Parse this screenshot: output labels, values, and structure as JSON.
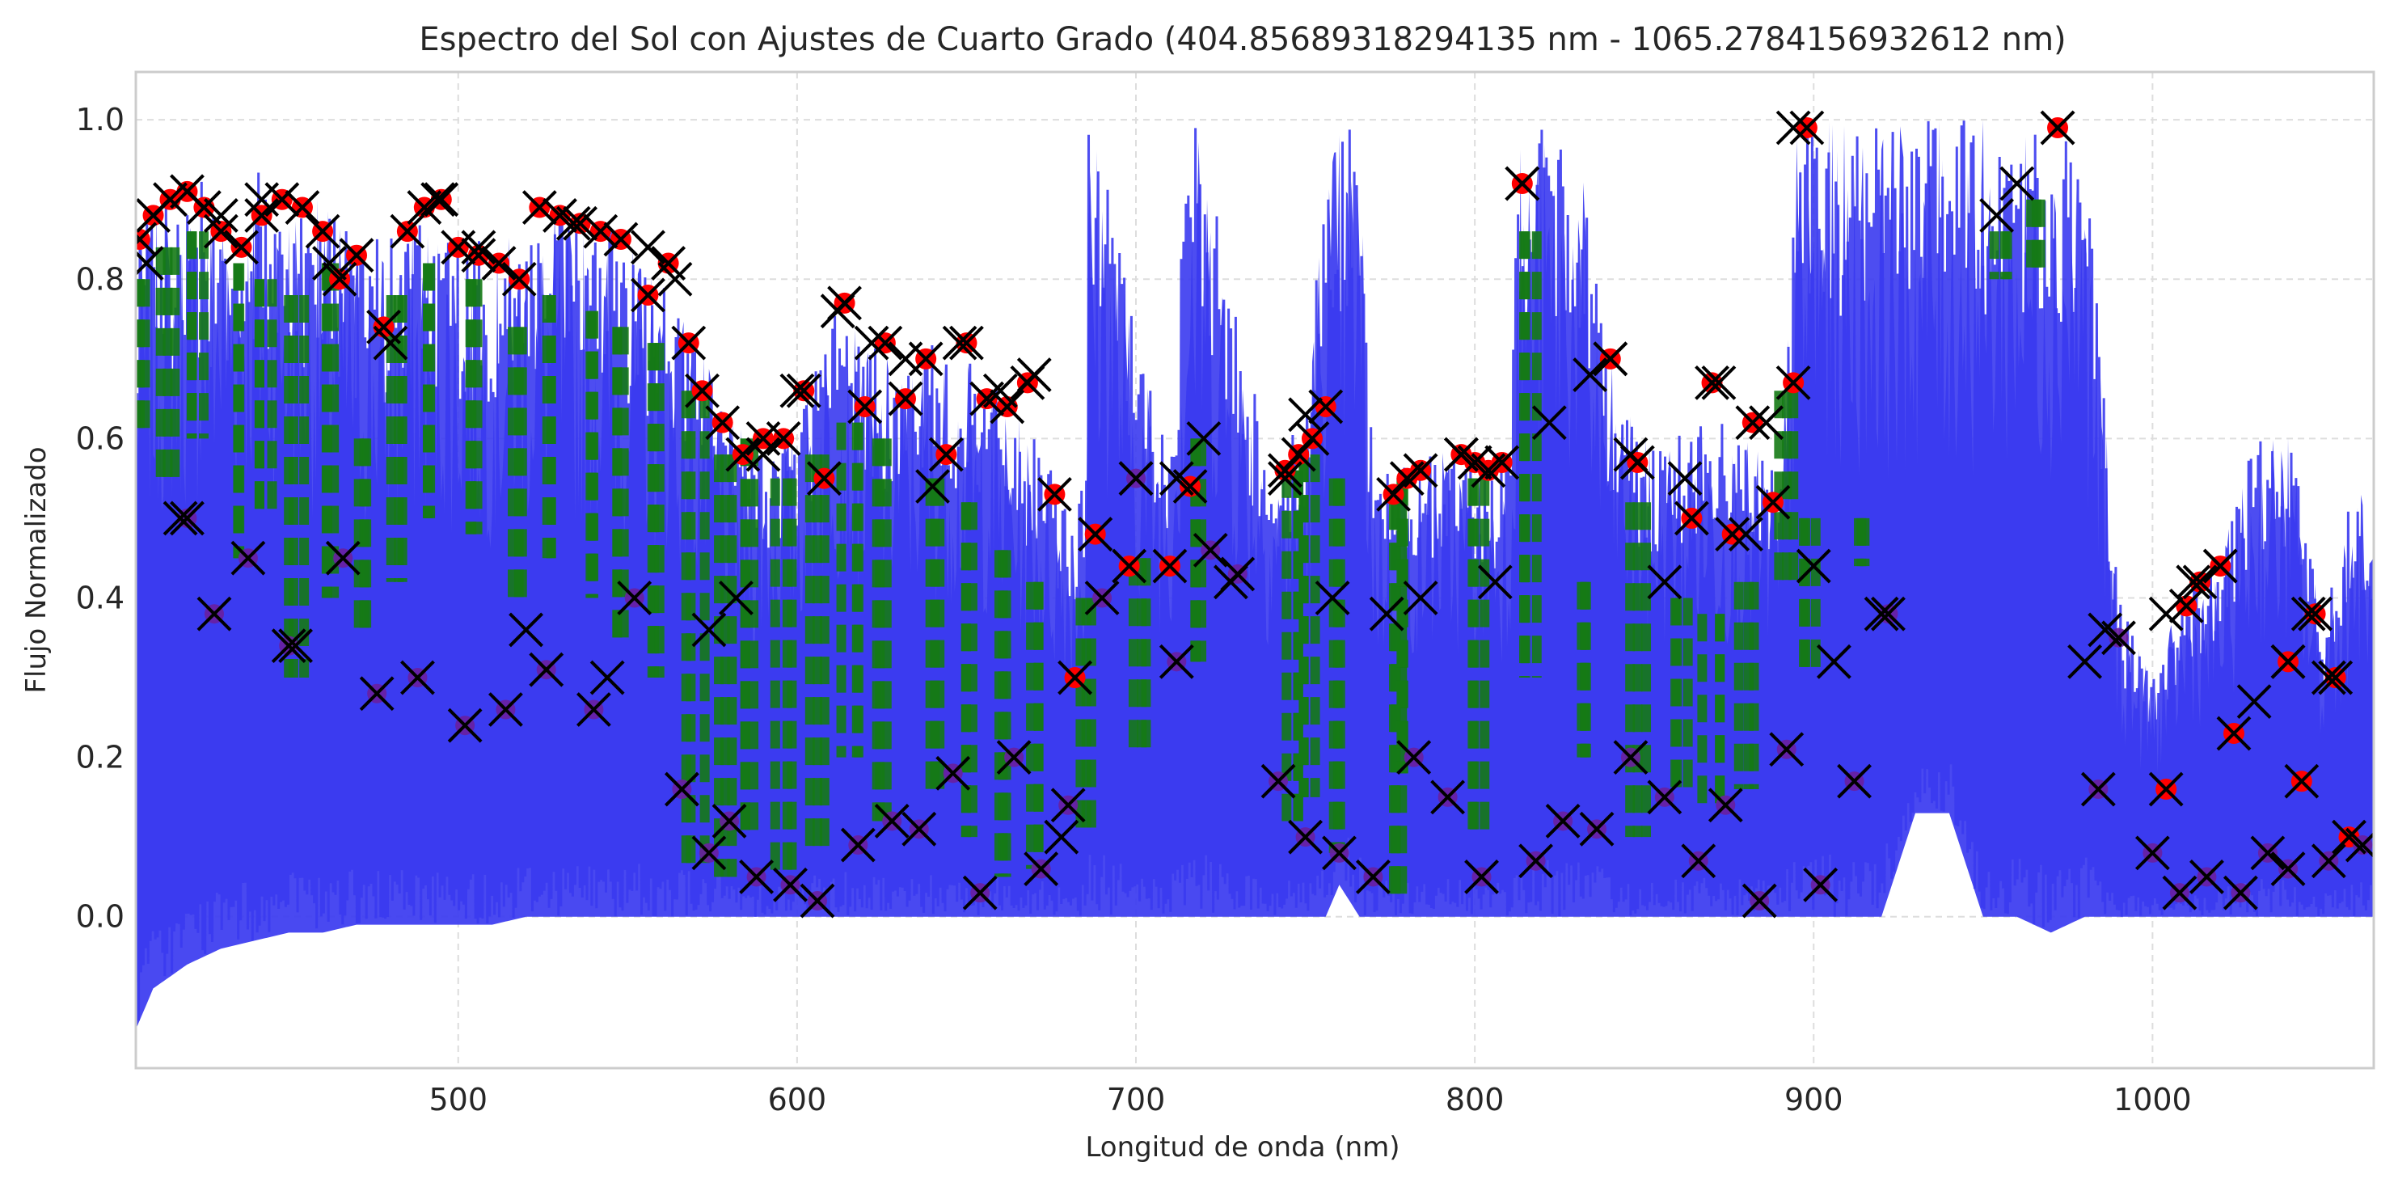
{
  "chart_data": {
    "type": "line",
    "title": "Espectro del Sol con Ajustes de Cuarto Grado (404.85689318294135 nm - 1065.2784156932612 nm)",
    "xlabel": "Longitud de onda (nm)",
    "ylabel": "Flujo Normalizado",
    "xlim": [
      404.86,
      1065.28
    ],
    "ylim": [
      -0.19,
      1.06
    ],
    "x_ticks": [
      500,
      600,
      700,
      800,
      900,
      1000
    ],
    "y_ticks": [
      0.0,
      0.2,
      0.4,
      0.6,
      0.8,
      1.0
    ],
    "x_tick_labels": [
      "500",
      "600",
      "700",
      "800",
      "900",
      "1000"
    ],
    "y_tick_labels": [
      "0.0",
      "0.2",
      "0.4",
      "0.6",
      "0.8",
      "1.0"
    ],
    "grid": true,
    "legend": "none",
    "colors": {
      "spectrum": "#3a3af0",
      "fit_points": "#ff0000",
      "continuum_markers": "#000000",
      "fit_segments": "#157a15",
      "low_points": "#6a1fa0"
    },
    "series": [
      {
        "kind": "spectrum-envelope",
        "x": [
          405,
          410,
          420,
          430,
          440,
          450,
          460,
          470,
          480,
          490,
          500,
          510,
          520,
          530,
          540,
          550,
          560,
          570,
          580,
          590,
          600,
          610,
          620,
          630,
          640,
          650,
          660,
          670,
          680,
          685,
          686,
          690,
          700,
          710,
          716,
          720,
          730,
          740,
          750,
          756,
          760,
          766,
          770,
          780,
          790,
          800,
          810,
          813,
          818,
          830,
          840,
          850,
          860,
          870,
          880,
          890,
          895,
          900,
          910,
          920,
          930,
          940,
          950,
          960,
          970,
          980,
          990,
          1000,
          1010,
          1020,
          1030,
          1040,
          1050,
          1060,
          1065
        ],
        "upper": [
          0.86,
          0.9,
          0.92,
          0.93,
          0.94,
          0.93,
          0.9,
          0.87,
          0.85,
          0.9,
          0.86,
          0.84,
          0.88,
          0.89,
          0.87,
          0.85,
          0.82,
          0.74,
          0.62,
          0.6,
          0.63,
          0.78,
          0.72,
          0.7,
          0.72,
          0.7,
          0.66,
          0.6,
          0.52,
          0.55,
          0.99,
          0.99,
          0.72,
          0.62,
          0.99,
          0.99,
          0.75,
          0.6,
          0.62,
          0.98,
          1.0,
          0.98,
          0.57,
          0.57,
          0.6,
          0.58,
          0.58,
          0.99,
          0.99,
          0.98,
          0.7,
          0.6,
          0.62,
          0.63,
          0.6,
          0.56,
          0.99,
          1.0,
          1.0,
          1.0,
          1.0,
          1.0,
          1.0,
          1.0,
          1.0,
          0.98,
          0.4,
          0.3,
          0.42,
          0.45,
          0.6,
          0.62,
          0.38,
          0.56,
          0.5
        ],
        "lower": [
          -0.14,
          -0.09,
          -0.06,
          -0.04,
          -0.03,
          -0.02,
          -0.02,
          -0.01,
          -0.01,
          -0.01,
          -0.01,
          -0.01,
          0.0,
          0.0,
          0.0,
          0.0,
          0.0,
          0.0,
          0.0,
          0.0,
          0.0,
          0.0,
          0.0,
          0.0,
          0.0,
          0.0,
          0.0,
          0.0,
          0.0,
          0.0,
          0.0,
          0.0,
          0.0,
          0.0,
          0.0,
          0.0,
          0.0,
          0.0,
          0.0,
          0.0,
          0.04,
          0.0,
          0.0,
          0.0,
          0.0,
          0.0,
          0.0,
          0.0,
          0.0,
          0.0,
          0.0,
          0.0,
          0.0,
          0.0,
          0.0,
          0.0,
          0.0,
          0.0,
          0.0,
          0.0,
          0.13,
          0.13,
          0.0,
          0.0,
          -0.02,
          0.0,
          0.0,
          0.0,
          0.0,
          0.0,
          0.0,
          0.0,
          0.0,
          0.0,
          0.0
        ]
      },
      {
        "kind": "fit-points-high",
        "x": [
          406,
          410,
          415,
          420,
          425,
          430,
          436,
          442,
          448,
          454,
          460,
          465,
          470,
          478,
          485,
          490,
          495,
          500,
          506,
          512,
          518,
          524,
          530,
          536,
          542,
          548,
          556,
          562,
          568,
          572,
          578,
          584,
          590,
          596,
          602,
          608,
          614,
          620,
          626,
          632,
          638,
          644,
          650,
          656,
          662,
          668,
          676,
          682,
          688,
          698,
          710,
          716,
          744,
          748,
          752,
          756,
          776,
          780,
          784,
          796,
          800,
          804,
          808,
          814,
          840,
          848,
          864,
          870,
          876,
          882,
          888,
          894,
          898,
          972,
          1004,
          1010,
          1014,
          1020,
          1024,
          1040,
          1044,
          1048,
          1054,
          1058
        ],
        "y": [
          0.85,
          0.88,
          0.9,
          0.91,
          0.89,
          0.86,
          0.84,
          0.88,
          0.9,
          0.89,
          0.86,
          0.8,
          0.83,
          0.74,
          0.86,
          0.89,
          0.9,
          0.84,
          0.83,
          0.82,
          0.8,
          0.89,
          0.88,
          0.87,
          0.86,
          0.85,
          0.78,
          0.82,
          0.72,
          0.66,
          0.62,
          0.58,
          0.6,
          0.6,
          0.66,
          0.55,
          0.77,
          0.64,
          0.72,
          0.65,
          0.7,
          0.58,
          0.72,
          0.65,
          0.64,
          0.67,
          0.53,
          0.3,
          0.48,
          0.44,
          0.44,
          0.54,
          0.56,
          0.58,
          0.6,
          0.64,
          0.53,
          0.55,
          0.56,
          0.58,
          0.57,
          0.56,
          0.57,
          0.92,
          0.7,
          0.57,
          0.5,
          0.67,
          0.48,
          0.62,
          0.52,
          0.67,
          0.99,
          0.99,
          0.16,
          0.39,
          0.42,
          0.44,
          0.23,
          0.32,
          0.17,
          0.38,
          0.3,
          0.1
        ]
      },
      {
        "kind": "fit-points-low",
        "x": [
          420,
          428,
          438,
          450,
          466,
          476,
          488,
          502,
          514,
          526,
          540,
          552,
          566,
          574,
          580,
          588,
          598,
          606,
          618,
          628,
          636,
          646,
          654,
          664,
          672,
          680,
          690,
          700,
          712,
          722,
          730,
          742,
          750,
          760,
          770,
          782,
          792,
          802,
          818,
          826,
          836,
          846,
          856,
          866,
          874,
          884,
          892,
          902,
          912,
          922,
          984,
          990,
          1000,
          1008,
          1016,
          1026,
          1034,
          1040,
          1052,
          1062
        ],
        "y": [
          0.5,
          0.38,
          0.45,
          0.34,
          0.45,
          0.28,
          0.3,
          0.24,
          0.26,
          0.31,
          0.26,
          0.4,
          0.16,
          0.08,
          0.12,
          0.05,
          0.04,
          0.02,
          0.09,
          0.12,
          0.11,
          0.18,
          0.03,
          0.2,
          0.06,
          0.14,
          0.4,
          0.55,
          0.32,
          0.46,
          0.43,
          0.17,
          0.1,
          0.08,
          0.05,
          0.2,
          0.15,
          0.05,
          0.07,
          0.12,
          0.11,
          0.2,
          0.15,
          0.07,
          0.14,
          0.02,
          0.21,
          0.04,
          0.17,
          0.38,
          0.16,
          0.35,
          0.08,
          0.03,
          0.05,
          0.03,
          0.08,
          0.06,
          0.07,
          0.09
        ]
      },
      {
        "kind": "fit-segments",
        "x": [
          406,
          414,
          424,
          434,
          444,
          452,
          462,
          472,
          482,
          492,
          504,
          516,
          528,
          538,
          548,
          560,
          570,
          578,
          586,
          596,
          606,
          616,
          626,
          640,
          652,
          662,
          672,
          686,
          700,
          720,
          746,
          752,
          758,
          776,
          780,
          800,
          816,
          830,
          848,
          860,
          870,
          880,
          892,
          898,
          914,
          956,
          966
        ],
        "y_top": [
          0.8,
          0.84,
          0.86,
          0.82,
          0.8,
          0.78,
          0.82,
          0.6,
          0.78,
          0.82,
          0.8,
          0.74,
          0.78,
          0.76,
          0.74,
          0.72,
          0.66,
          0.58,
          0.6,
          0.55,
          0.58,
          0.62,
          0.6,
          0.55,
          0.52,
          0.46,
          0.42,
          0.4,
          0.45,
          0.6,
          0.56,
          0.58,
          0.55,
          0.52,
          0.55,
          0.55,
          0.86,
          0.42,
          0.52,
          0.4,
          0.38,
          0.42,
          0.66,
          0.5,
          0.5,
          0.86,
          0.9
        ],
        "y_bottom": [
          0.6,
          0.55,
          0.6,
          0.45,
          0.5,
          0.3,
          0.4,
          0.35,
          0.42,
          0.5,
          0.48,
          0.4,
          0.45,
          0.4,
          0.35,
          0.3,
          0.06,
          0.05,
          0.1,
          0.05,
          0.08,
          0.2,
          0.12,
          0.15,
          0.1,
          0.05,
          0.06,
          0.1,
          0.2,
          0.32,
          0.12,
          0.15,
          0.08,
          0.02,
          0.18,
          0.1,
          0.3,
          0.2,
          0.1,
          0.15,
          0.14,
          0.16,
          0.42,
          0.3,
          0.44,
          0.8,
          0.8
        ]
      },
      {
        "kind": "continuum-markers",
        "x": [
          408,
          418,
          430,
          442,
          452,
          462,
          480,
          494,
          506,
          520,
          534,
          544,
          556,
          564,
          574,
          582,
          590,
          600,
          612,
          622,
          632,
          640,
          648,
          660,
          670,
          678,
          688,
          700,
          712,
          720,
          728,
          744,
          750,
          758,
          774,
          784,
          796,
          806,
          814,
          822,
          834,
          840,
          846,
          856,
          862,
          872,
          880,
          886,
          894,
          900,
          906,
          920,
          954,
          960,
          972,
          980,
          986,
          1004,
          1012,
          1020,
          1030,
          1040,
          1046,
          1052
        ],
        "y": [
          0.82,
          0.5,
          0.88,
          0.9,
          0.34,
          0.82,
          0.72,
          0.9,
          0.84,
          0.36,
          0.87,
          0.3,
          0.84,
          0.8,
          0.36,
          0.4,
          0.58,
          0.66,
          0.76,
          0.72,
          0.7,
          0.54,
          0.72,
          0.66,
          0.68,
          0.1,
          0.48,
          0.55,
          0.55,
          0.6,
          0.42,
          0.55,
          0.63,
          0.4,
          0.38,
          0.4,
          0.58,
          0.42,
          0.92,
          0.62,
          0.68,
          0.7,
          0.58,
          0.42,
          0.55,
          0.67,
          0.48,
          0.62,
          0.99,
          0.44,
          0.32,
          0.38,
          0.88,
          0.92,
          0.99,
          0.32,
          0.36,
          0.38,
          0.42,
          0.44,
          0.27,
          0.32,
          0.38,
          0.3
        ]
      }
    ]
  }
}
